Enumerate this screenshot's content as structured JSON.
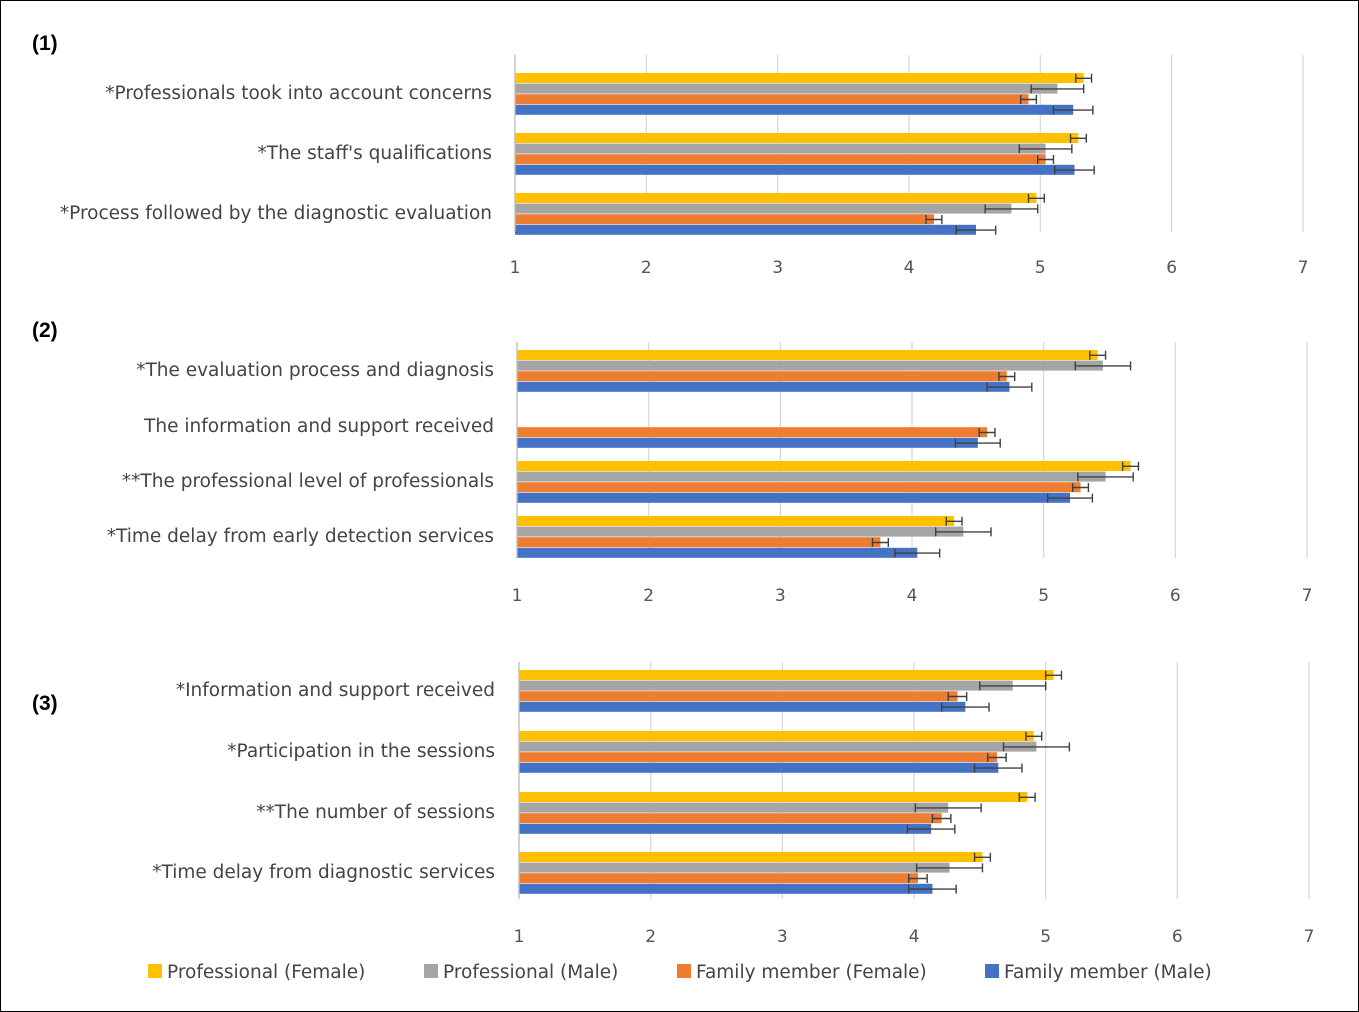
{
  "colors": {
    "professional_female": "#FFC000",
    "professional_male": "#A5A5A5",
    "family_female": "#ED7D31",
    "family_male": "#4472C4"
  },
  "legend": [
    {
      "name": "Professional (Female)",
      "color": "#FFC000"
    },
    {
      "name": "Professional (Male)",
      "color": "#A5A5A5"
    },
    {
      "name": "Family member (Female)",
      "color": "#ED7D31"
    },
    {
      "name": "Family member (Male)",
      "color": "#4472C4"
    }
  ],
  "chart_data": [
    {
      "type": "bar",
      "orientation": "horizontal",
      "panel_label": "(1)",
      "xlim": [
        1,
        7
      ],
      "xticks": [
        "1",
        "2",
        "3",
        "4",
        "5",
        "6",
        "7"
      ],
      "grid": true,
      "categories": [
        "*Professionals took into account concerns",
        "*The staff's qualifications",
        "*Process followed by the diagnostic evaluation"
      ],
      "series": [
        {
          "name": "Professional (Female)",
          "values": [
            5.33,
            5.29,
            4.97
          ],
          "errors": [
            0.06,
            0.06,
            0.06
          ]
        },
        {
          "name": "Professional (Male)",
          "values": [
            5.13,
            5.04,
            4.78
          ],
          "errors": [
            0.2,
            0.2,
            0.2
          ]
        },
        {
          "name": "Family member (Female)",
          "values": [
            4.91,
            5.04,
            4.19
          ],
          "errors": [
            0.06,
            0.06,
            0.06
          ]
        },
        {
          "name": "Family member (Male)",
          "values": [
            5.25,
            5.26,
            4.51
          ],
          "errors": [
            0.15,
            0.15,
            0.15
          ]
        }
      ]
    },
    {
      "type": "bar",
      "orientation": "horizontal",
      "panel_label": "(2)",
      "xlim": [
        1,
        7
      ],
      "xticks": [
        "1",
        "2",
        "3",
        "4",
        "5",
        "6",
        "7"
      ],
      "grid": true,
      "categories": [
        "*The evaluation process and diagnosis",
        "The information and support received",
        "**The professional level of professionals",
        "*Time delay from early detection services"
      ],
      "series": [
        {
          "name": "Professional (Female)",
          "values": [
            5.41,
            null,
            5.66,
            4.32
          ],
          "errors": [
            0.06,
            null,
            0.06,
            0.06
          ]
        },
        {
          "name": "Professional (Male)",
          "values": [
            5.45,
            null,
            5.47,
            4.39
          ],
          "errors": [
            0.21,
            null,
            0.21,
            0.21
          ]
        },
        {
          "name": "Family member (Female)",
          "values": [
            4.72,
            4.57,
            5.28,
            3.76
          ],
          "errors": [
            0.06,
            0.06,
            0.06,
            0.06
          ]
        },
        {
          "name": "Family member (Male)",
          "values": [
            4.74,
            4.5,
            5.2,
            4.04
          ],
          "errors": [
            0.17,
            0.17,
            0.17,
            0.17
          ]
        }
      ]
    },
    {
      "type": "bar",
      "orientation": "horizontal",
      "panel_label": "(3)",
      "xlim": [
        1,
        7
      ],
      "xticks": [
        "1",
        "2",
        "3",
        "4",
        "5",
        "6",
        "7"
      ],
      "grid": true,
      "categories": [
        "*Information and support received",
        "*Participation in the sessions",
        "**The number of sessions",
        "*Time delay from diagnostic services"
      ],
      "series": [
        {
          "name": "Professional (Female)",
          "values": [
            5.06,
            4.91,
            4.86,
            4.52
          ],
          "errors": [
            0.06,
            0.06,
            0.06,
            0.06
          ]
        },
        {
          "name": "Professional (Male)",
          "values": [
            4.75,
            4.93,
            4.26,
            4.27
          ],
          "errors": [
            0.25,
            0.25,
            0.25,
            0.25
          ]
        },
        {
          "name": "Family member (Female)",
          "values": [
            4.33,
            4.63,
            4.21,
            4.03
          ],
          "errors": [
            0.07,
            0.07,
            0.07,
            0.07
          ]
        },
        {
          "name": "Family member (Male)",
          "values": [
            4.39,
            4.64,
            4.13,
            4.14
          ],
          "errors": [
            0.18,
            0.18,
            0.18,
            0.18
          ]
        }
      ]
    }
  ]
}
